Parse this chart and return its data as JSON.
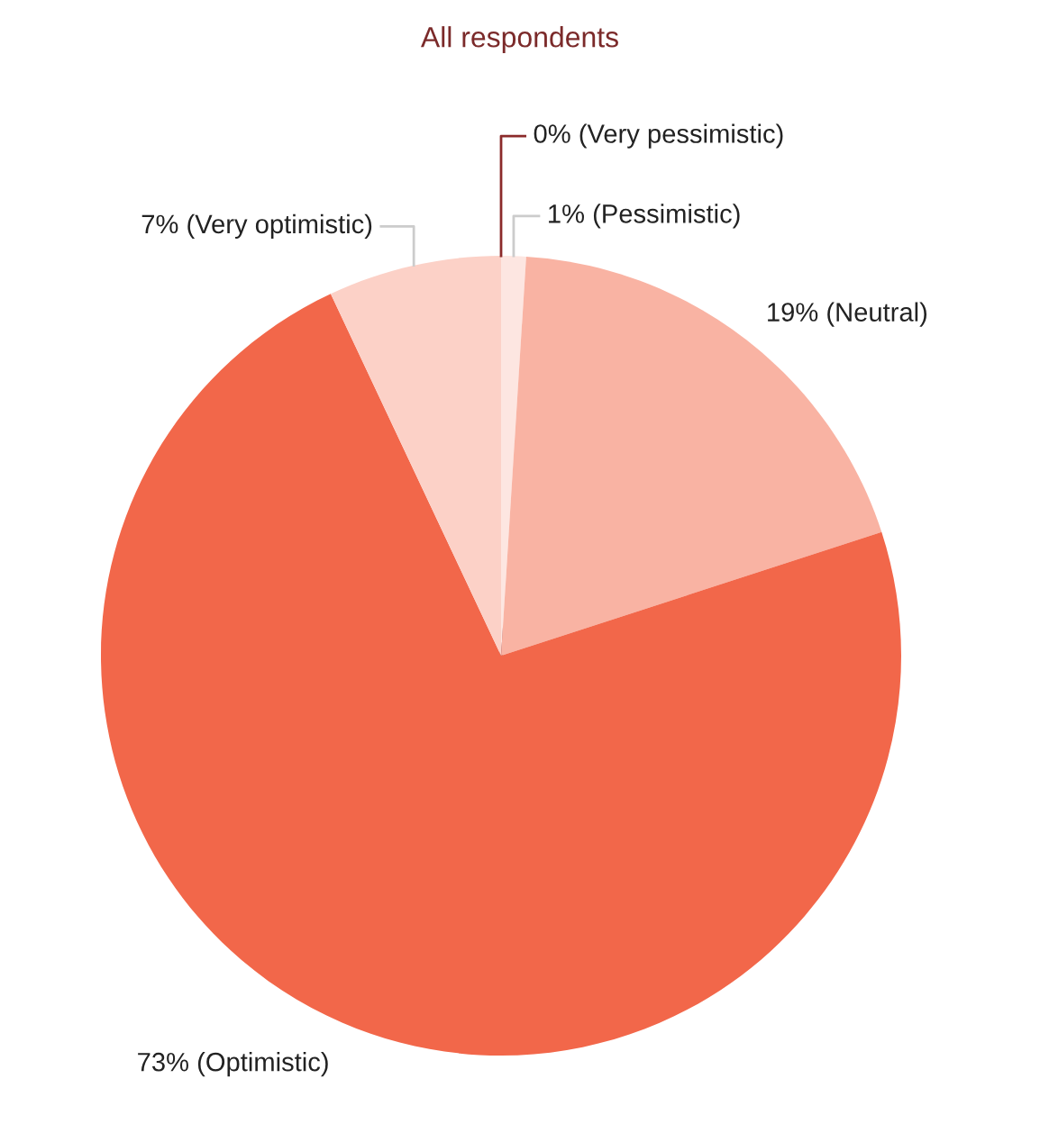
{
  "chart_data": {
    "type": "pie",
    "title": "All respondents",
    "categories": [
      "(Very pessimistic)",
      "(Pessimistic)",
      "(Neutral)",
      "(Optimistic)",
      "(Very optimistic)"
    ],
    "values": [
      0,
      1,
      19,
      73,
      7
    ],
    "value_labels": [
      "0%",
      "1%",
      "19%",
      "73%",
      "7%"
    ],
    "colors": [
      "#8b2b2b",
      "#fde6e1",
      "#f9b3a3",
      "#f2674a",
      "#fcd1c7"
    ],
    "legend": false
  }
}
